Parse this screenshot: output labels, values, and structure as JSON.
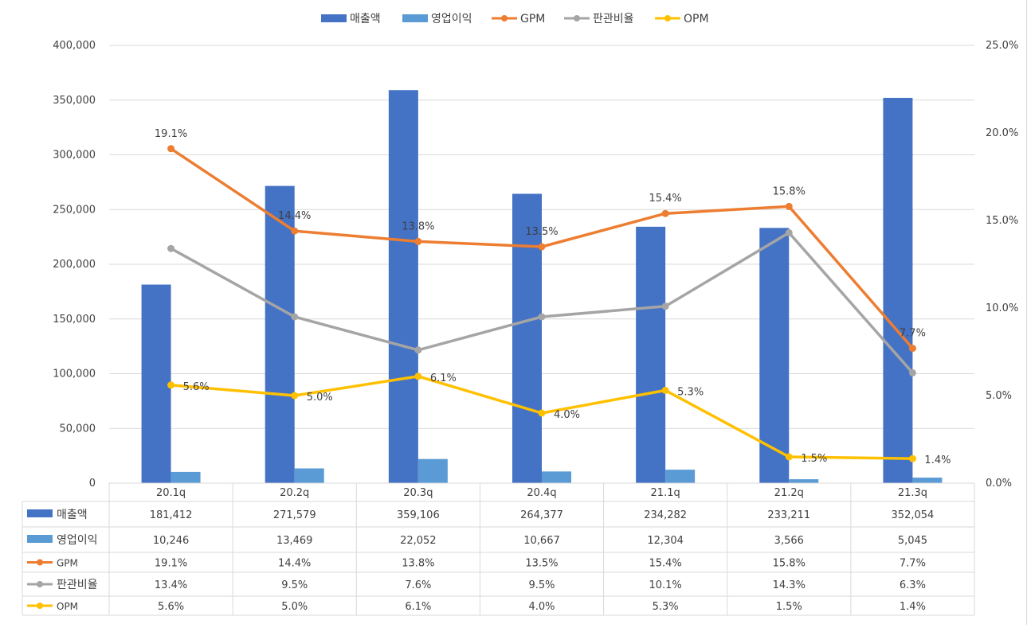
{
  "chart_data": {
    "type": "bar",
    "categories": [
      "20.1q",
      "20.2q",
      "20.3q",
      "20.4q",
      "21.1q",
      "21.2q",
      "21.3q"
    ],
    "left_axis": {
      "ylim": [
        0,
        400000
      ],
      "ticks": [
        "0",
        "50,000",
        "100,000",
        "150,000",
        "200,000",
        "250,000",
        "300,000",
        "350,000",
        "400,000"
      ]
    },
    "right_axis": {
      "ylim": [
        0,
        25
      ],
      "ticks": [
        "0.0%",
        "5.0%",
        "10.0%",
        "15.0%",
        "20.0%",
        "25.0%"
      ]
    },
    "series": [
      {
        "name": "매출액",
        "kind": "bar",
        "axis": "left",
        "color": "#4472C4",
        "values": [
          181412,
          271579,
          359106,
          264377,
          234282,
          233211,
          352054
        ],
        "table": [
          "181,412",
          "271,579",
          "359,106",
          "264,377",
          "234,282",
          "233,211",
          "352,054"
        ]
      },
      {
        "name": "영업이익",
        "kind": "bar",
        "axis": "left",
        "color": "#5B9BD5",
        "values": [
          10246,
          13469,
          22052,
          10667,
          12304,
          3566,
          5045
        ],
        "table": [
          "10,246",
          "13,469",
          "22,052",
          "10,667",
          "12,304",
          "3,566",
          "5,045"
        ]
      },
      {
        "name": "GPM",
        "kind": "line",
        "axis": "right",
        "color": "#ED7D31",
        "values": [
          19.1,
          14.4,
          13.8,
          13.5,
          15.4,
          15.8,
          7.7
        ],
        "table": [
          "19.1%",
          "14.4%",
          "13.8%",
          "13.5%",
          "15.4%",
          "15.8%",
          "7.7%"
        ],
        "data_labels": true
      },
      {
        "name": "판관비율",
        "kind": "line",
        "axis": "right",
        "color": "#A5A5A5",
        "values": [
          13.4,
          9.5,
          7.6,
          9.5,
          10.1,
          14.3,
          6.3
        ],
        "table": [
          "13.4%",
          "9.5%",
          "7.6%",
          "9.5%",
          "10.1%",
          "14.3%",
          "6.3%"
        ],
        "data_labels": false
      },
      {
        "name": "OPM",
        "kind": "line",
        "axis": "right",
        "color": "#FFC000",
        "values": [
          5.6,
          5.0,
          6.1,
          4.0,
          5.3,
          1.5,
          1.4
        ],
        "table": [
          "5.6%",
          "5.0%",
          "6.1%",
          "4.0%",
          "5.3%",
          "1.5%",
          "1.4%"
        ],
        "data_labels": true
      }
    ],
    "legend": "top",
    "grid": true,
    "data_table": true
  }
}
